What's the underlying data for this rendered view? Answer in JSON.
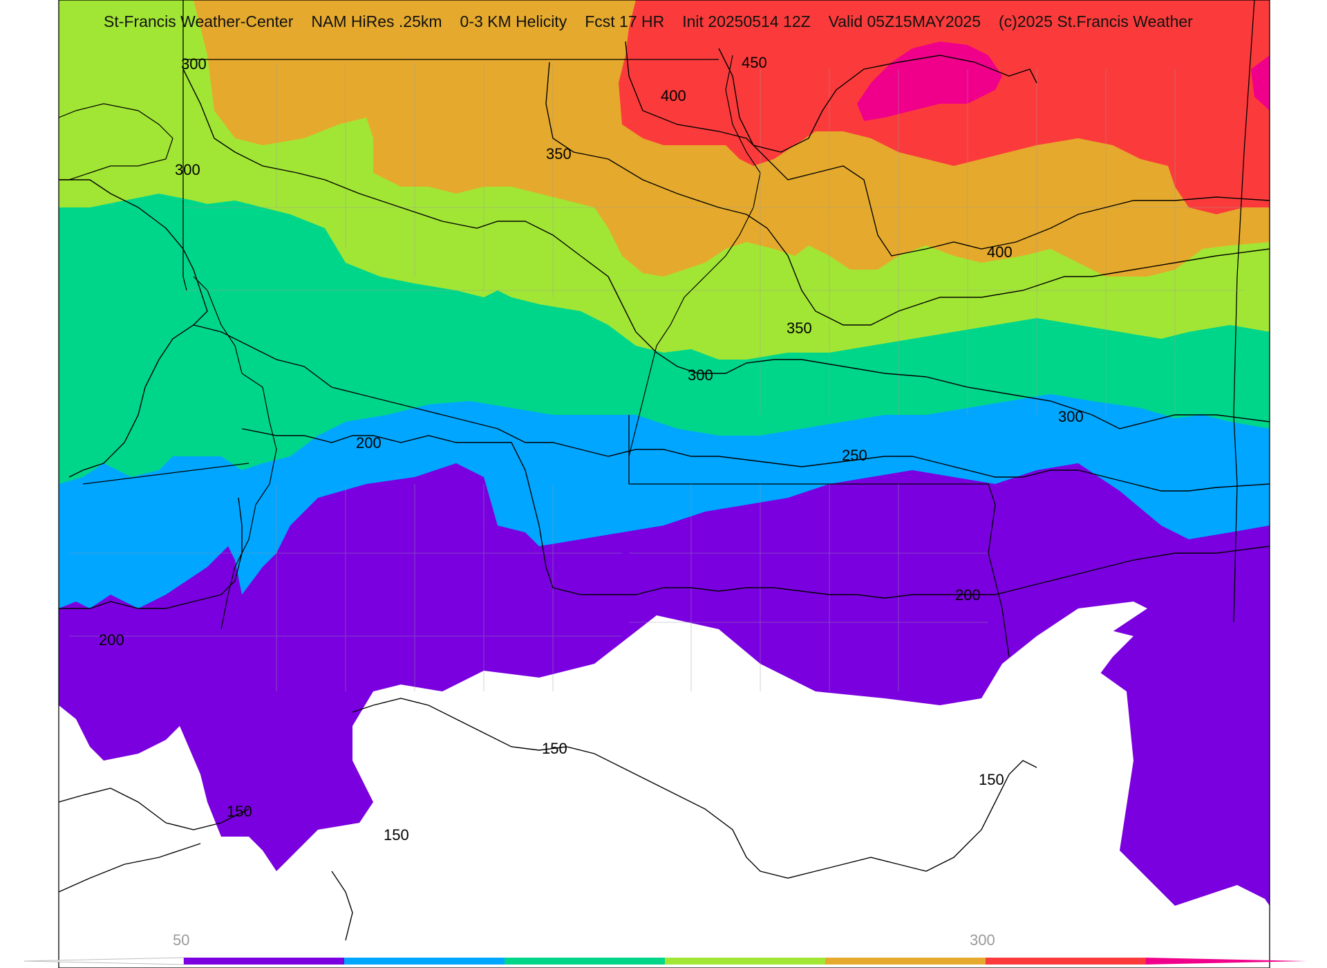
{
  "header": {
    "center": "St-Francis Weather-Center",
    "model": "NAM HiRes .25km",
    "field": "0-3 KM Helicity",
    "forecast": "Fcst 17 HR",
    "init": "Init 20250514 12Z",
    "valid": "Valid 05Z15MAY2025",
    "copyright": "(c)2025 St.Francis Weather"
  },
  "contour_labels": [
    "300",
    "450",
    "400",
    "300",
    "350",
    "400",
    "350",
    "300",
    "300",
    "200",
    "250",
    "200",
    "200",
    "150",
    "150",
    "150",
    "150"
  ],
  "colorbar": {
    "tick_labels": [
      "50",
      "300"
    ],
    "colors": [
      "#7a00e0",
      "#00a6ff",
      "#00d68a",
      "#a2e635",
      "#e5aa2d",
      "#fb3b3b",
      "#f0008a"
    ]
  },
  "legend_colors": {
    "white_lt_50": "#ffffff",
    "purple": "#7a00e0",
    "blue": "#00a6ff",
    "teal": "#00d68a",
    "lime": "#a2e635",
    "orange": "#e5aa2d",
    "red": "#fb3b3b",
    "magenta": "#f0008a"
  }
}
